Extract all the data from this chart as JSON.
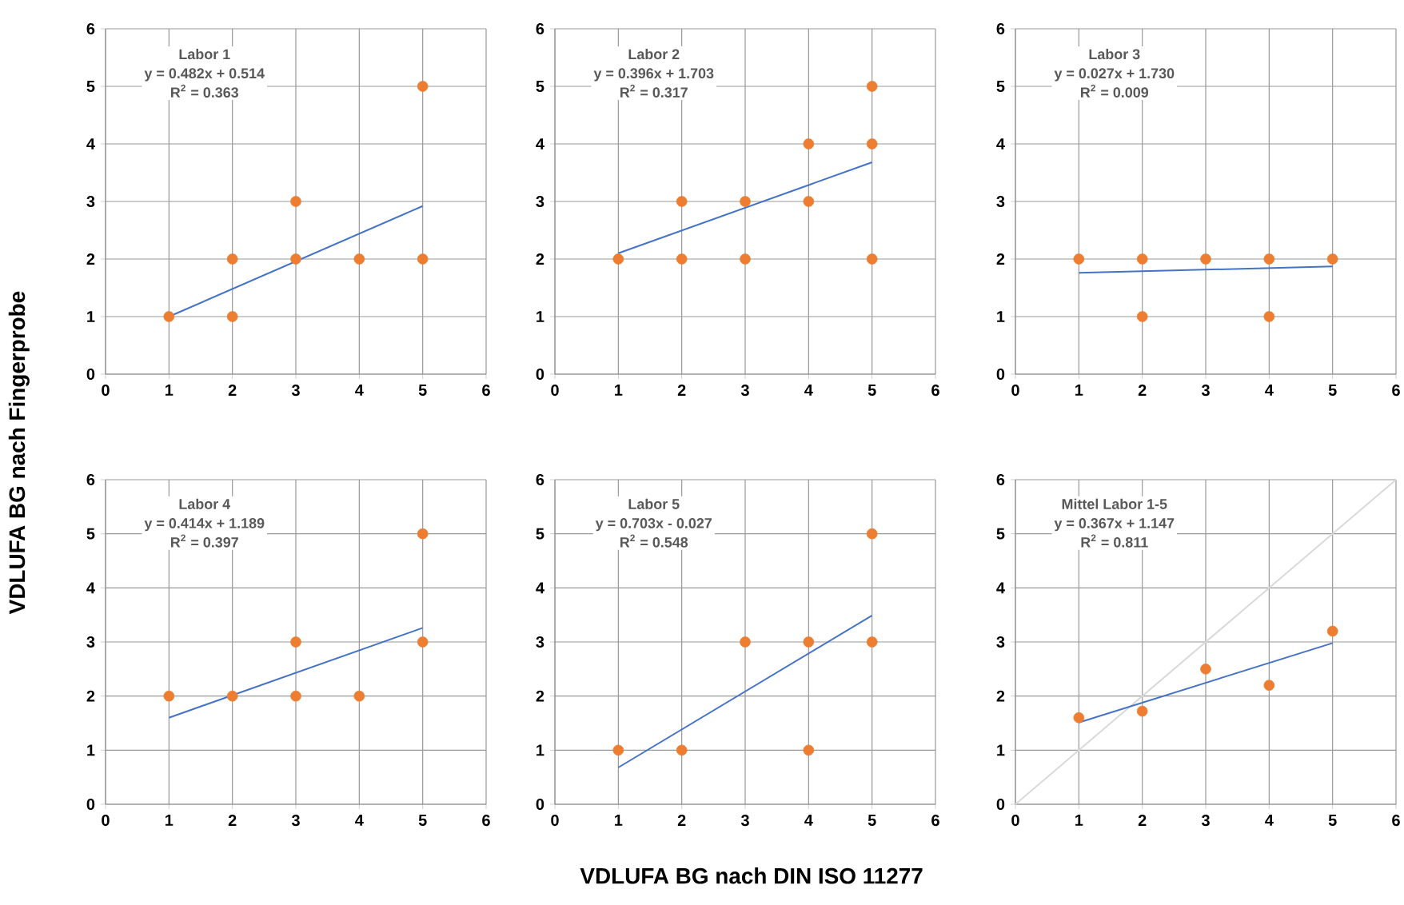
{
  "chart_data": [
    {
      "type": "scatter",
      "title": "Labor 1",
      "ylabel": "VDLUFA BG nach Fingerprobe",
      "annotations": [
        "y = 0.482x + 0.514",
        "R$^{2}$ = 0.363"
      ],
      "xlim": [
        0,
        6
      ],
      "ylim": [
        0,
        6
      ],
      "xticks": [
        0,
        1,
        2,
        3,
        4,
        5,
        6
      ],
      "yticks": [
        0,
        1,
        2,
        3,
        4,
        5,
        6
      ],
      "grid": true,
      "series": [
        {
          "marker": "circle",
          "color": "#ed7d31",
          "x": [
            1,
            2,
            2,
            3,
            3,
            4,
            5,
            5
          ],
          "values": [
            1,
            2,
            1,
            3,
            2,
            2,
            5,
            2
          ]
        },
        {
          "type": "line",
          "marker": "none",
          "color": "#4472c4",
          "x": [
            1,
            5
          ],
          "values": [
            1.0,
            2.92
          ]
        }
      ]
    },
    {
      "type": "scatter",
      "title": "Labor 2",
      "annotations": [
        "y = 0.396x + 1.703",
        "R$^{2}$ = 0.317"
      ],
      "xlim": [
        0,
        6
      ],
      "ylim": [
        0,
        6
      ],
      "xticks": [
        0,
        1,
        2,
        3,
        4,
        5,
        6
      ],
      "yticks": [
        0,
        1,
        2,
        3,
        4,
        5,
        6
      ],
      "grid": true,
      "series": [
        {
          "marker": "circle",
          "color": "#ed7d31",
          "x": [
            1,
            2,
            2,
            3,
            3,
            4,
            4,
            5,
            5,
            5
          ],
          "values": [
            2,
            3,
            2,
            3,
            2,
            4,
            3,
            5,
            4,
            2
          ]
        },
        {
          "type": "line",
          "marker": "none",
          "color": "#4472c4",
          "x": [
            1,
            5
          ],
          "values": [
            2.1,
            3.68
          ]
        }
      ]
    },
    {
      "type": "scatter",
      "title": "Labor 3",
      "annotations": [
        "y = 0.027x + 1.730",
        "R$^{2}$ = 0.009"
      ],
      "xlim": [
        0,
        6
      ],
      "ylim": [
        0,
        6
      ],
      "xticks": [
        0,
        1,
        2,
        3,
        4,
        5,
        6
      ],
      "yticks": [
        0,
        1,
        2,
        3,
        4,
        5,
        6
      ],
      "grid": true,
      "series": [
        {
          "marker": "circle",
          "color": "#ed7d31",
          "x": [
            1,
            2,
            2,
            3,
            4,
            4,
            5
          ],
          "values": [
            2,
            2,
            1,
            2,
            2,
            1,
            2
          ]
        },
        {
          "type": "line",
          "marker": "none",
          "color": "#4472c4",
          "x": [
            1,
            5
          ],
          "values": [
            1.76,
            1.87
          ]
        }
      ]
    },
    {
      "type": "scatter",
      "title": "Labor 4",
      "annotations": [
        "y = 0.414x + 1.189",
        "R$^{2}$ = 0.397"
      ],
      "xlim": [
        0,
        6
      ],
      "ylim": [
        0,
        6
      ],
      "xticks": [
        0,
        1,
        2,
        3,
        4,
        5,
        6
      ],
      "yticks": [
        0,
        1,
        2,
        3,
        4,
        5,
        6
      ],
      "grid": true,
      "series": [
        {
          "marker": "circle",
          "color": "#ed7d31",
          "x": [
            1,
            2,
            3,
            3,
            4,
            5,
            5
          ],
          "values": [
            2,
            2,
            3,
            2,
            2,
            5,
            3
          ]
        },
        {
          "type": "line",
          "marker": "none",
          "color": "#4472c4",
          "x": [
            1,
            5
          ],
          "values": [
            1.6,
            3.26
          ]
        }
      ]
    },
    {
      "type": "scatter",
      "title": "Labor 5",
      "xlabel": "VDLUFA BG nach DIN ISO 11277",
      "annotations": [
        "y = 0.703x - 0.027",
        "R$^{2}$ = 0.548"
      ],
      "xlim": [
        0,
        6
      ],
      "ylim": [
        0,
        6
      ],
      "xticks": [
        0,
        1,
        2,
        3,
        4,
        5,
        6
      ],
      "yticks": [
        0,
        1,
        2,
        3,
        4,
        5,
        6
      ],
      "grid": true,
      "series": [
        {
          "marker": "circle",
          "color": "#ed7d31",
          "x": [
            1,
            2,
            3,
            4,
            4,
            5,
            5
          ],
          "values": [
            1,
            1,
            3,
            3,
            1,
            5,
            3
          ]
        },
        {
          "type": "line",
          "marker": "none",
          "color": "#4472c4",
          "x": [
            1,
            5
          ],
          "values": [
            0.68,
            3.49
          ]
        }
      ]
    },
    {
      "type": "scatter",
      "title": "Mittel Labor 1-5",
      "annotations": [
        "y = 0.367x + 1.147",
        "R$^{2}$ = 0.811"
      ],
      "xlim": [
        0,
        6
      ],
      "ylim": [
        0,
        6
      ],
      "xticks": [
        0,
        1,
        2,
        3,
        4,
        5,
        6
      ],
      "yticks": [
        0,
        1,
        2,
        3,
        4,
        5,
        6
      ],
      "grid": true,
      "series": [
        {
          "type": "line",
          "marker": "none",
          "color": "#d9d9d9",
          "x": [
            0,
            6
          ],
          "values": [
            0,
            6
          ]
        },
        {
          "marker": "circle",
          "color": "#ed7d31",
          "x": [
            1,
            2,
            3,
            4,
            5
          ],
          "values": [
            1.6,
            1.72,
            2.5,
            2.2,
            3.2
          ]
        },
        {
          "type": "line",
          "marker": "none",
          "color": "#4472c4",
          "x": [
            1,
            5
          ],
          "values": [
            1.51,
            2.98
          ]
        }
      ]
    }
  ]
}
